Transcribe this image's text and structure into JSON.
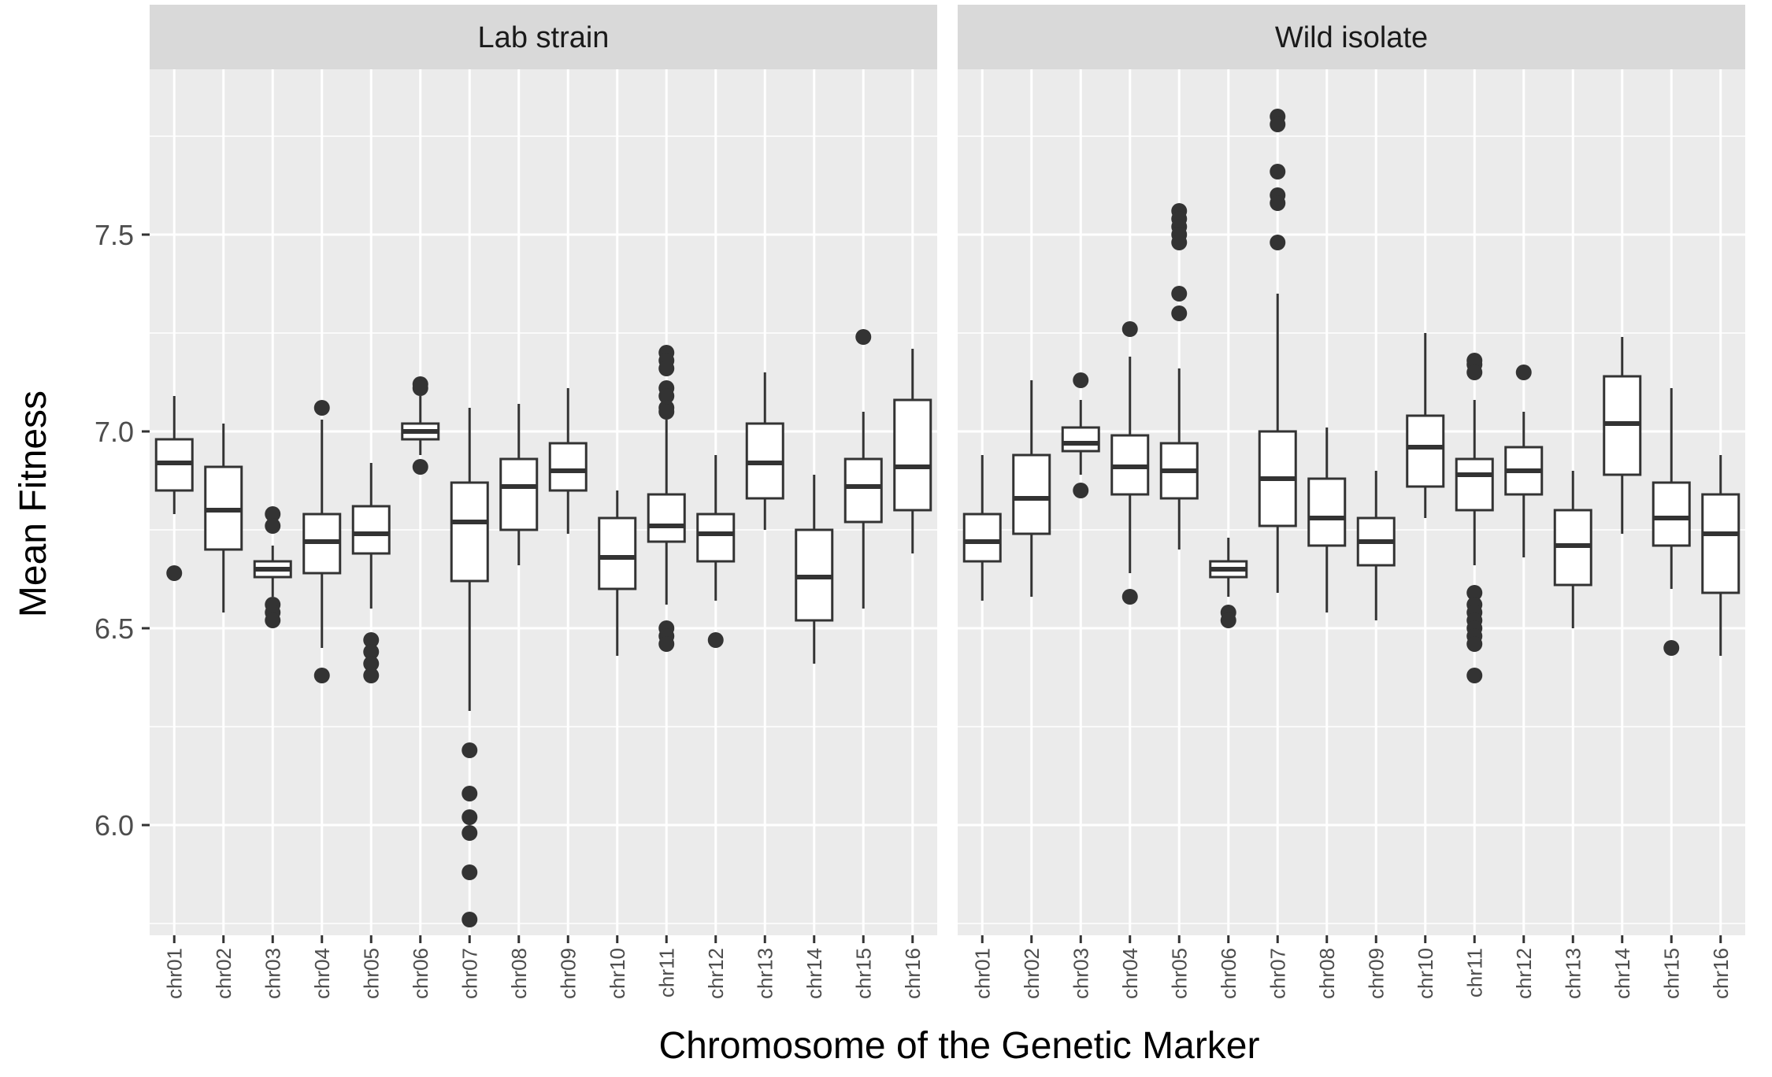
{
  "chart_data": {
    "type": "boxplot",
    "xlabel": "Chromosome of the Genetic Marker",
    "ylabel": "Mean Fitness",
    "ylim": [
      5.72,
      7.92
    ],
    "yticks": [
      6.0,
      6.5,
      7.0,
      7.5
    ],
    "ytick_labels": [
      "6.0",
      "6.5",
      "7.0",
      "7.5"
    ],
    "grid": true,
    "categories": [
      "chr01",
      "chr02",
      "chr03",
      "chr04",
      "chr05",
      "chr06",
      "chr07",
      "chr08",
      "chr09",
      "chr10",
      "chr11",
      "chr12",
      "chr13",
      "chr14",
      "chr15",
      "chr16"
    ],
    "colors": {
      "panel_bg": "#EBEBEB",
      "strip_bg": "#D9D9D9",
      "grid": "#FFFFFF",
      "box_line": "#333333",
      "box_fill": "#FFFFFF"
    },
    "facets": [
      {
        "label": "Lab strain",
        "boxes": [
          {
            "category": "chr01",
            "whisker_low": 6.79,
            "q1": 6.85,
            "median": 6.92,
            "q3": 6.98,
            "whisker_high": 7.09,
            "outliers": [
              6.64
            ]
          },
          {
            "category": "chr02",
            "whisker_low": 6.54,
            "q1": 6.7,
            "median": 6.8,
            "q3": 6.91,
            "whisker_high": 7.02,
            "outliers": []
          },
          {
            "category": "chr03",
            "whisker_low": 6.58,
            "q1": 6.63,
            "median": 6.65,
            "q3": 6.67,
            "whisker_high": 6.71,
            "outliers": [
              6.79,
              6.76,
              6.56,
              6.54,
              6.52
            ]
          },
          {
            "category": "chr04",
            "whisker_low": 6.45,
            "q1": 6.64,
            "median": 6.72,
            "q3": 6.79,
            "whisker_high": 7.03,
            "outliers": [
              7.06,
              6.38
            ]
          },
          {
            "category": "chr05",
            "whisker_low": 6.55,
            "q1": 6.69,
            "median": 6.74,
            "q3": 6.81,
            "whisker_high": 6.92,
            "outliers": [
              6.47,
              6.44,
              6.41,
              6.38
            ]
          },
          {
            "category": "chr06",
            "whisker_low": 6.94,
            "q1": 6.98,
            "median": 7.0,
            "q3": 7.02,
            "whisker_high": 7.09,
            "outliers": [
              7.12,
              7.11,
              6.91
            ]
          },
          {
            "category": "chr07",
            "whisker_low": 6.29,
            "q1": 6.62,
            "median": 6.77,
            "q3": 6.87,
            "whisker_high": 7.06,
            "outliers": [
              6.19,
              6.08,
              6.02,
              5.98,
              5.88,
              5.76
            ]
          },
          {
            "category": "chr08",
            "whisker_low": 6.66,
            "q1": 6.75,
            "median": 6.86,
            "q3": 6.93,
            "whisker_high": 7.07,
            "outliers": []
          },
          {
            "category": "chr09",
            "whisker_low": 6.74,
            "q1": 6.85,
            "median": 6.9,
            "q3": 6.97,
            "whisker_high": 7.11,
            "outliers": []
          },
          {
            "category": "chr10",
            "whisker_low": 6.43,
            "q1": 6.6,
            "median": 6.68,
            "q3": 6.78,
            "whisker_high": 6.85,
            "outliers": []
          },
          {
            "category": "chr11",
            "whisker_low": 6.56,
            "q1": 6.72,
            "median": 6.76,
            "q3": 6.84,
            "whisker_high": 7.03,
            "outliers": [
              7.2,
              7.18,
              7.16,
              7.11,
              7.09,
              7.06,
              7.05,
              6.5,
              6.48,
              6.46
            ]
          },
          {
            "category": "chr12",
            "whisker_low": 6.57,
            "q1": 6.67,
            "median": 6.74,
            "q3": 6.79,
            "whisker_high": 6.94,
            "outliers": [
              6.47
            ]
          },
          {
            "category": "chr13",
            "whisker_low": 6.75,
            "q1": 6.83,
            "median": 6.92,
            "q3": 7.02,
            "whisker_high": 7.15,
            "outliers": []
          },
          {
            "category": "chr14",
            "whisker_low": 6.41,
            "q1": 6.52,
            "median": 6.63,
            "q3": 6.75,
            "whisker_high": 6.89,
            "outliers": []
          },
          {
            "category": "chr15",
            "whisker_low": 6.55,
            "q1": 6.77,
            "median": 6.86,
            "q3": 6.93,
            "whisker_high": 7.05,
            "outliers": [
              7.24
            ]
          },
          {
            "category": "chr16",
            "whisker_low": 6.69,
            "q1": 6.8,
            "median": 6.91,
            "q3": 7.08,
            "whisker_high": 7.21,
            "outliers": []
          }
        ]
      },
      {
        "label": "Wild isolate",
        "boxes": [
          {
            "category": "chr01",
            "whisker_low": 6.57,
            "q1": 6.67,
            "median": 6.72,
            "q3": 6.79,
            "whisker_high": 6.94,
            "outliers": []
          },
          {
            "category": "chr02",
            "whisker_low": 6.58,
            "q1": 6.74,
            "median": 6.83,
            "q3": 6.94,
            "whisker_high": 7.13,
            "outliers": []
          },
          {
            "category": "chr03",
            "whisker_low": 6.89,
            "q1": 6.95,
            "median": 6.97,
            "q3": 7.01,
            "whisker_high": 7.08,
            "outliers": [
              7.13,
              6.85
            ]
          },
          {
            "category": "chr04",
            "whisker_low": 6.64,
            "q1": 6.84,
            "median": 6.91,
            "q3": 6.99,
            "whisker_high": 7.19,
            "outliers": [
              7.26,
              6.58
            ]
          },
          {
            "category": "chr05",
            "whisker_low": 6.7,
            "q1": 6.83,
            "median": 6.9,
            "q3": 6.97,
            "whisker_high": 7.16,
            "outliers": [
              7.56,
              7.54,
              7.52,
              7.5,
              7.48,
              7.35,
              7.3
            ]
          },
          {
            "category": "chr06",
            "whisker_low": 6.58,
            "q1": 6.63,
            "median": 6.65,
            "q3": 6.67,
            "whisker_high": 6.73,
            "outliers": [
              6.54,
              6.52
            ]
          },
          {
            "category": "chr07",
            "whisker_low": 6.59,
            "q1": 6.76,
            "median": 6.88,
            "q3": 7.0,
            "whisker_high": 7.35,
            "outliers": [
              7.8,
              7.78,
              7.66,
              7.6,
              7.58,
              7.48
            ]
          },
          {
            "category": "chr08",
            "whisker_low": 6.54,
            "q1": 6.71,
            "median": 6.78,
            "q3": 6.88,
            "whisker_high": 7.01,
            "outliers": []
          },
          {
            "category": "chr09",
            "whisker_low": 6.52,
            "q1": 6.66,
            "median": 6.72,
            "q3": 6.78,
            "whisker_high": 6.9,
            "outliers": []
          },
          {
            "category": "chr10",
            "whisker_low": 6.78,
            "q1": 6.86,
            "median": 6.96,
            "q3": 7.04,
            "whisker_high": 7.25,
            "outliers": []
          },
          {
            "category": "chr11",
            "whisker_low": 6.66,
            "q1": 6.8,
            "median": 6.89,
            "q3": 6.93,
            "whisker_high": 7.08,
            "outliers": [
              7.18,
              7.17,
              7.15,
              6.59,
              6.56,
              6.54,
              6.52,
              6.5,
              6.48,
              6.46,
              6.38
            ]
          },
          {
            "category": "chr12",
            "whisker_low": 6.68,
            "q1": 6.84,
            "median": 6.9,
            "q3": 6.96,
            "whisker_high": 7.05,
            "outliers": [
              7.15
            ]
          },
          {
            "category": "chr13",
            "whisker_low": 6.5,
            "q1": 6.61,
            "median": 6.71,
            "q3": 6.8,
            "whisker_high": 6.9,
            "outliers": []
          },
          {
            "category": "chr14",
            "whisker_low": 6.74,
            "q1": 6.89,
            "median": 7.02,
            "q3": 7.14,
            "whisker_high": 7.24,
            "outliers": []
          },
          {
            "category": "chr15",
            "whisker_low": 6.6,
            "q1": 6.71,
            "median": 6.78,
            "q3": 6.87,
            "whisker_high": 7.11,
            "outliers": [
              6.45
            ]
          },
          {
            "category": "chr16",
            "whisker_low": 6.43,
            "q1": 6.59,
            "median": 6.74,
            "q3": 6.84,
            "whisker_high": 6.94,
            "outliers": []
          }
        ]
      }
    ]
  }
}
